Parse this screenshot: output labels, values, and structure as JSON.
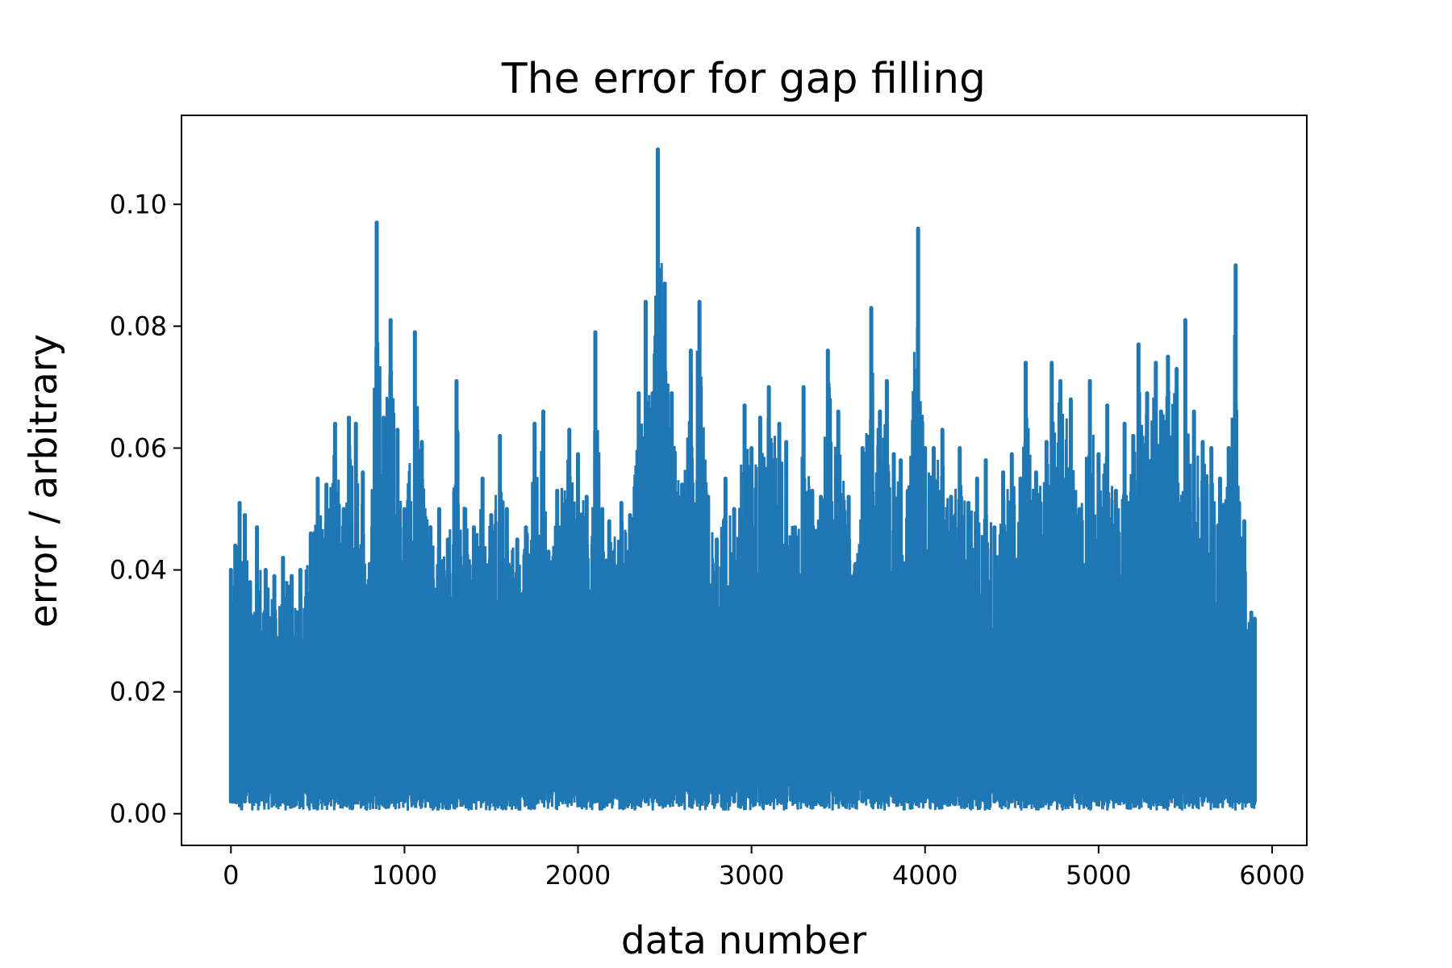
{
  "chart_data": {
    "type": "line",
    "title": "The error for gap filling",
    "xlabel": "data number",
    "ylabel": "error / arbitrary",
    "xlim": [
      -285,
      6200
    ],
    "ylim": [
      -0.0052,
      0.1146
    ],
    "xticks": [
      0,
      1000,
      2000,
      3000,
      4000,
      5000,
      6000
    ],
    "xtick_labels": [
      "0",
      "1000",
      "2000",
      "3000",
      "4000",
      "5000",
      "6000"
    ],
    "yticks": [
      0.0,
      0.02,
      0.04,
      0.06,
      0.08,
      0.1
    ],
    "ytick_labels": [
      "0.00",
      "0.02",
      "0.04",
      "0.06",
      "0.08",
      "0.10"
    ],
    "grid": false,
    "legend": "none",
    "line_color": "#1f77b4",
    "series": [
      {
        "x": [
          0,
          25,
          50,
          80,
          110,
          150,
          200,
          250,
          300,
          350,
          400,
          460,
          500,
          550,
          600,
          650,
          680,
          720,
          760,
          800,
          840,
          880,
          920,
          960,
          1000,
          1060,
          1100,
          1150,
          1200,
          1250,
          1300,
          1350,
          1400,
          1450,
          1500,
          1550,
          1590,
          1650,
          1700,
          1750,
          1800,
          1830,
          1880,
          1950,
          2000,
          2050,
          2100,
          2140,
          2180,
          2250,
          2300,
          2350,
          2390,
          2430,
          2460,
          2500,
          2540,
          2600,
          2650,
          2700,
          2750,
          2800,
          2850,
          2900,
          2960,
          3000,
          3050,
          3100,
          3160,
          3200,
          3250,
          3300,
          3350,
          3400,
          3440,
          3500,
          3560,
          3600,
          3640,
          3690,
          3740,
          3780,
          3820,
          3860,
          3900,
          3960,
          4000,
          4050,
          4100,
          4150,
          4200,
          4250,
          4300,
          4350,
          4400,
          4450,
          4500,
          4550,
          4580,
          4640,
          4700,
          4730,
          4780,
          4840,
          4890,
          4950,
          5000,
          5050,
          5100,
          5150,
          5200,
          5230,
          5280,
          5330,
          5360,
          5400,
          5450,
          5500,
          5550,
          5600,
          5650,
          5700,
          5750,
          5790,
          5810,
          5840,
          5880,
          5900
        ],
        "y": [
          0.04,
          0.044,
          0.051,
          0.049,
          0.038,
          0.047,
          0.04,
          0.039,
          0.042,
          0.039,
          0.04,
          0.046,
          0.055,
          0.054,
          0.064,
          0.05,
          0.065,
          0.064,
          0.056,
          0.041,
          0.097,
          0.065,
          0.081,
          0.063,
          0.05,
          0.079,
          0.061,
          0.047,
          0.05,
          0.045,
          0.071,
          0.05,
          0.047,
          0.055,
          0.049,
          0.062,
          0.05,
          0.045,
          0.047,
          0.064,
          0.066,
          0.043,
          0.053,
          0.063,
          0.059,
          0.052,
          0.079,
          0.05,
          0.048,
          0.051,
          0.049,
          0.069,
          0.084,
          0.069,
          0.109,
          0.087,
          0.069,
          0.054,
          0.076,
          0.084,
          0.052,
          0.045,
          0.055,
          0.05,
          0.067,
          0.06,
          0.065,
          0.07,
          0.064,
          0.061,
          0.047,
          0.07,
          0.053,
          0.052,
          0.076,
          0.066,
          0.052,
          0.041,
          0.06,
          0.083,
          0.066,
          0.071,
          0.059,
          0.058,
          0.053,
          0.096,
          0.06,
          0.06,
          0.063,
          0.052,
          0.06,
          0.051,
          0.055,
          0.058,
          0.047,
          0.056,
          0.059,
          0.055,
          0.074,
          0.056,
          0.061,
          0.074,
          0.071,
          0.068,
          0.05,
          0.071,
          0.059,
          0.067,
          0.053,
          0.064,
          0.062,
          0.077,
          0.069,
          0.074,
          0.066,
          0.075,
          0.073,
          0.081,
          0.066,
          0.061,
          0.06,
          0.055,
          0.06,
          0.09,
          0.051,
          0.048,
          0.033,
          0.032
        ]
      }
    ]
  }
}
